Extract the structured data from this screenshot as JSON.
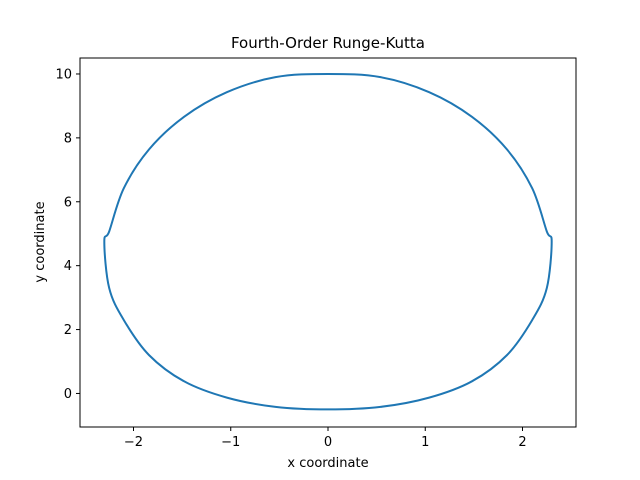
{
  "chart_data": {
    "type": "line",
    "title": "Fourth-Order Runge-Kutta",
    "xlabel": "x coordinate",
    "ylabel": "y coordinate",
    "xlim": [
      -2.55,
      2.55
    ],
    "ylim": [
      -1.05,
      10.5
    ],
    "xticks": [
      -2,
      -1,
      0,
      1,
      2
    ],
    "xtick_labels": [
      "−2",
      "−1",
      "0",
      "1",
      "2"
    ],
    "yticks": [
      0,
      2,
      4,
      6,
      8,
      10
    ],
    "ytick_labels": [
      "0",
      "2",
      "4",
      "6",
      "8",
      "10"
    ],
    "grid": false,
    "series": [
      {
        "color": "#1f77b4",
        "x": [
          0,
          0.54,
          1.04,
          1.48,
          1.84,
          2.1,
          2.25,
          2.3,
          2.25,
          2.1,
          1.84,
          1.48,
          1.04,
          0.54,
          0,
          -0.54,
          -1.04,
          -1.48,
          -1.84,
          -2.1,
          -2.25,
          -2.3,
          -2.25,
          -2.1,
          -1.84,
          -1.48,
          -1.04,
          -0.54,
          0
        ],
        "y": [
          10,
          9.9,
          9.43,
          8.66,
          7.64,
          6.42,
          5.07,
          4.75,
          3.3,
          2.3,
          1.2,
          0.38,
          -0.13,
          -0.42,
          -0.5,
          -0.42,
          -0.13,
          0.38,
          1.2,
          2.3,
          3.3,
          4.75,
          5.07,
          6.42,
          7.64,
          8.66,
          9.43,
          9.9,
          10
        ]
      }
    ]
  }
}
